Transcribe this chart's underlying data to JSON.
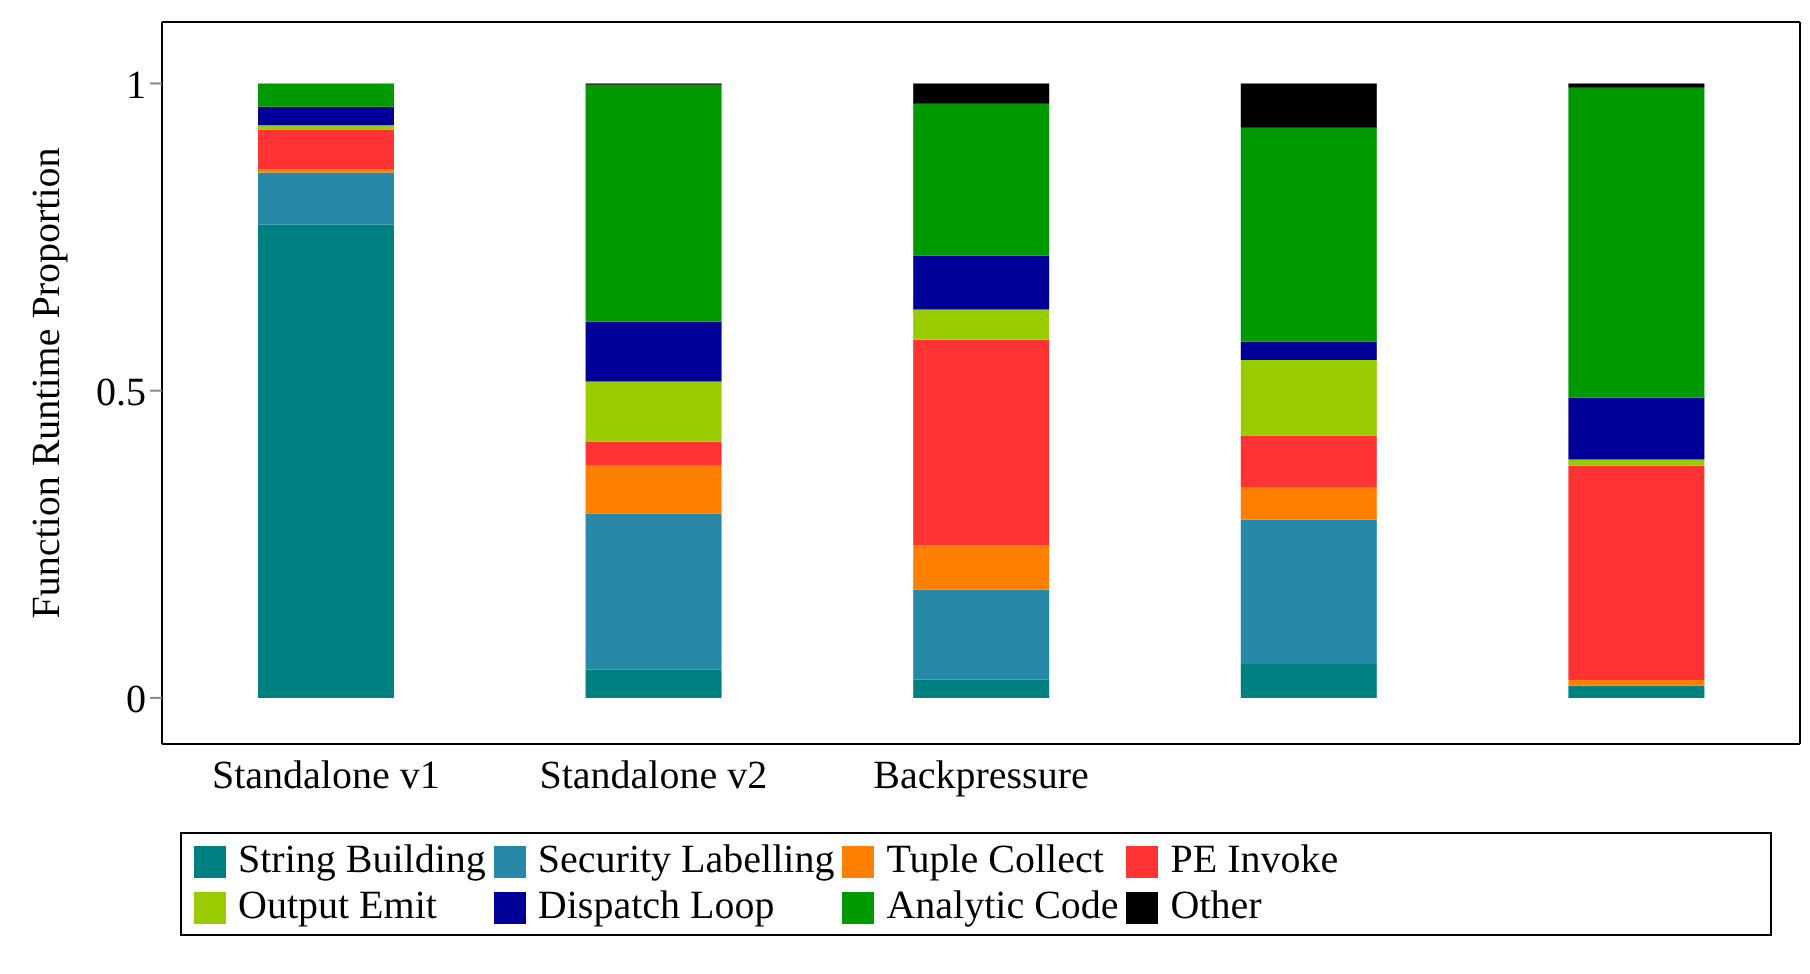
{
  "chart_data": {
    "type": "bar",
    "stacked": true,
    "ylabel": "Function Runtime Proportion",
    "categories": [
      "Standalone v1",
      "Standalone v2",
      "Backpressure",
      null,
      null
    ],
    "series": [
      {
        "name": "String Building",
        "color": "#008080",
        "values": [
          0.77,
          0.046,
          0.03,
          0.055,
          0.02
        ]
      },
      {
        "name": "Security Labelling",
        "color": "#2788a8",
        "values": [
          0.085,
          0.254,
          0.146,
          0.235,
          0
        ]
      },
      {
        "name": "Tuple Collect",
        "color": "#ff8000",
        "values": [
          0.005,
          0.078,
          0.072,
          0.052,
          0.009
        ]
      },
      {
        "name": "PE Invoke",
        "color": "#ff3333",
        "values": [
          0.065,
          0.039,
          0.335,
          0.085,
          0.349
        ]
      },
      {
        "name": "Output Emit",
        "color": "#99cc00",
        "values": [
          0.007,
          0.098,
          0.049,
          0.123,
          0.01
        ]
      },
      {
        "name": "Dispatch Loop",
        "color": "#000099",
        "values": [
          0.03,
          0.097,
          0.088,
          0.03,
          0.101
        ]
      },
      {
        "name": "Analytic Code",
        "color": "#009900",
        "values": [
          0.038,
          0.386,
          0.247,
          0.348,
          0.504
        ]
      },
      {
        "name": "Other",
        "color": "#000000",
        "values": [
          0,
          0.002,
          0.033,
          0.072,
          0.007
        ]
      }
    ],
    "ylim": [
      -0.075,
      1.1
    ],
    "yticks": [
      0,
      0.5,
      1
    ],
    "legend": "bottom"
  }
}
